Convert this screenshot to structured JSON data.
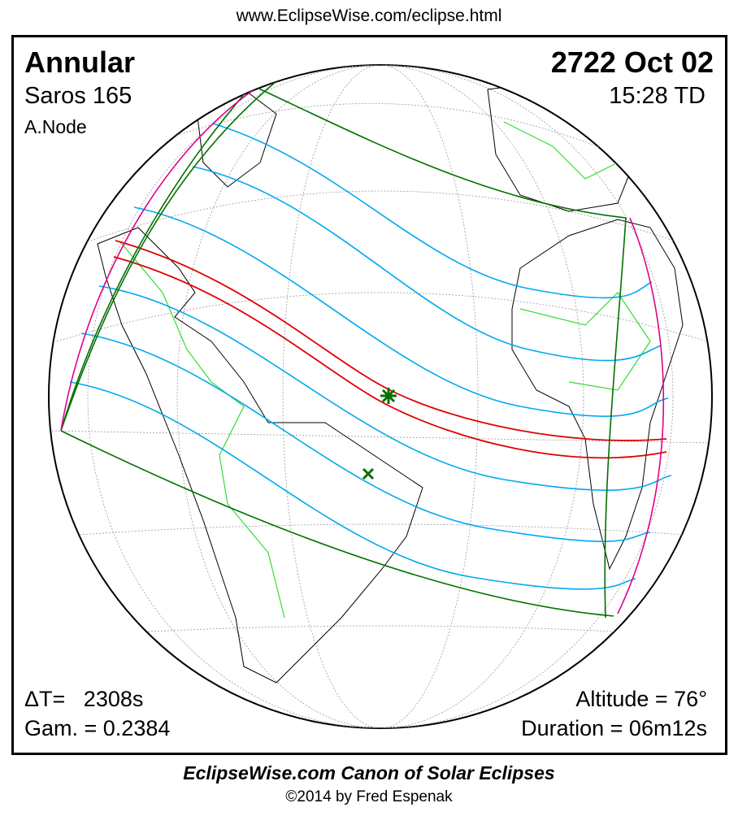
{
  "url": "www.EclipseWise.com/eclipse.html",
  "eclipse": {
    "type": "Annular",
    "saros": "Saros 165",
    "node": "A.Node",
    "date": "2722 Oct 02",
    "time": "15:28 TD",
    "delta_t": "ΔT=   2308s",
    "gamma": "Gam. = 0.2384",
    "altitude": "Altitude = 76°",
    "duration": "Duration = 06m12s"
  },
  "footer": {
    "canon": "EclipseWise.com Canon of Solar Eclipses",
    "copyright": "©2014 by Fred Espenak"
  },
  "colors": {
    "central_path": "#e00000",
    "penumbral_limits": "#007000",
    "partial_lines": "#00a8f0",
    "rise_set": "#e0008c",
    "borders": "#33dd33"
  }
}
